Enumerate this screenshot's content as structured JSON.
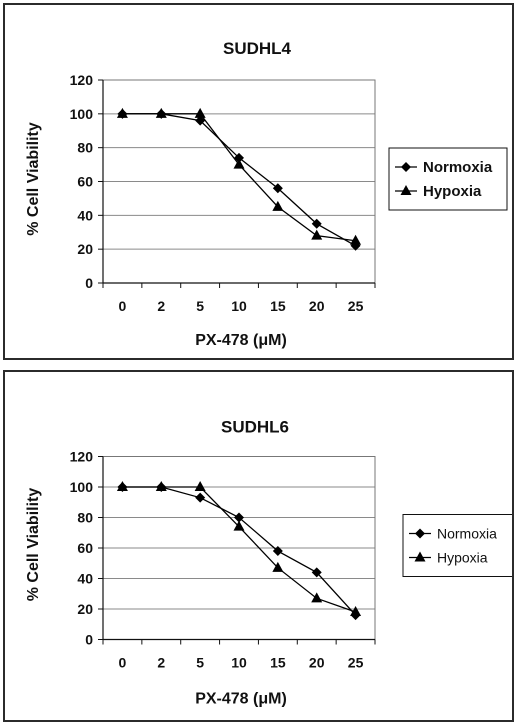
{
  "chart_data": [
    {
      "type": "line",
      "title": "SUDHL4",
      "xlabel": "PX-478 (μM)",
      "ylabel": "% Cell Viability",
      "categories": [
        "0",
        "2",
        "5",
        "10",
        "15",
        "20",
        "25"
      ],
      "ylim": [
        0,
        120
      ],
      "yticks": [
        0,
        20,
        40,
        60,
        80,
        100,
        120
      ],
      "grid": true,
      "legend": "right",
      "series": [
        {
          "name": "Normoxia",
          "marker": "diamond",
          "values": [
            100,
            100,
            96,
            74,
            56,
            35,
            22
          ]
        },
        {
          "name": "Hypoxia",
          "marker": "triangle",
          "values": [
            100,
            100,
            100,
            70,
            45,
            28,
            25
          ]
        }
      ]
    },
    {
      "type": "line",
      "title": "SUDHL6",
      "xlabel": "PX-478 (μM)",
      "ylabel": "% Cell Viability",
      "categories": [
        "0",
        "2",
        "5",
        "10",
        "15",
        "20",
        "25"
      ],
      "ylim": [
        0,
        120
      ],
      "yticks": [
        0,
        20,
        40,
        60,
        80,
        100,
        120
      ],
      "grid": true,
      "legend": "right",
      "series": [
        {
          "name": "Normoxia",
          "marker": "diamond",
          "values": [
            100,
            100,
            93,
            80,
            58,
            44,
            16
          ]
        },
        {
          "name": "Hypoxia",
          "marker": "triangle",
          "values": [
            100,
            100,
            100,
            74,
            47,
            27,
            18
          ]
        }
      ]
    }
  ]
}
